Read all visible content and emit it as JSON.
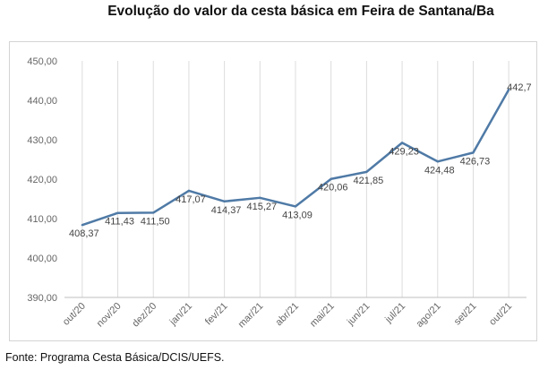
{
  "chart_data": {
    "type": "line",
    "title": "Evolução do valor da cesta básica em Feira de Santana/Ba",
    "categories": [
      "out/20",
      "nov/20",
      "dez/20",
      "jan/21",
      "fev/21",
      "mar/21",
      "abr/21",
      "mai/21",
      "jun/21",
      "jul/21",
      "ago/21",
      "set/21",
      "out/21"
    ],
    "values": [
      408.37,
      411.43,
      411.5,
      417.07,
      414.37,
      415.27,
      413.09,
      420.06,
      421.85,
      429.23,
      424.48,
      426.73,
      442.7
    ],
    "data_labels": [
      "408,37",
      "411,43",
      "411,50",
      "417,07",
      "414,37",
      "415,27",
      "413,09",
      "420,06",
      "421,85",
      "429,23",
      "424,48",
      "426,73",
      "442,7"
    ],
    "y_ticks": [
      390,
      400,
      410,
      420,
      430,
      440,
      450
    ],
    "y_tick_labels": [
      "390,00",
      "400,00",
      "410,00",
      "420,00",
      "430,00",
      "440,00",
      "450,00"
    ],
    "ylim": [
      390,
      450
    ],
    "xlabel": "",
    "ylabel": "",
    "grid": "vertical",
    "legend": "none",
    "line_color": "#4f7aa6",
    "grid_color": "#dcdcdc"
  },
  "source": "Fonte: Programa Cesta Básica/DCIS/UEFS."
}
